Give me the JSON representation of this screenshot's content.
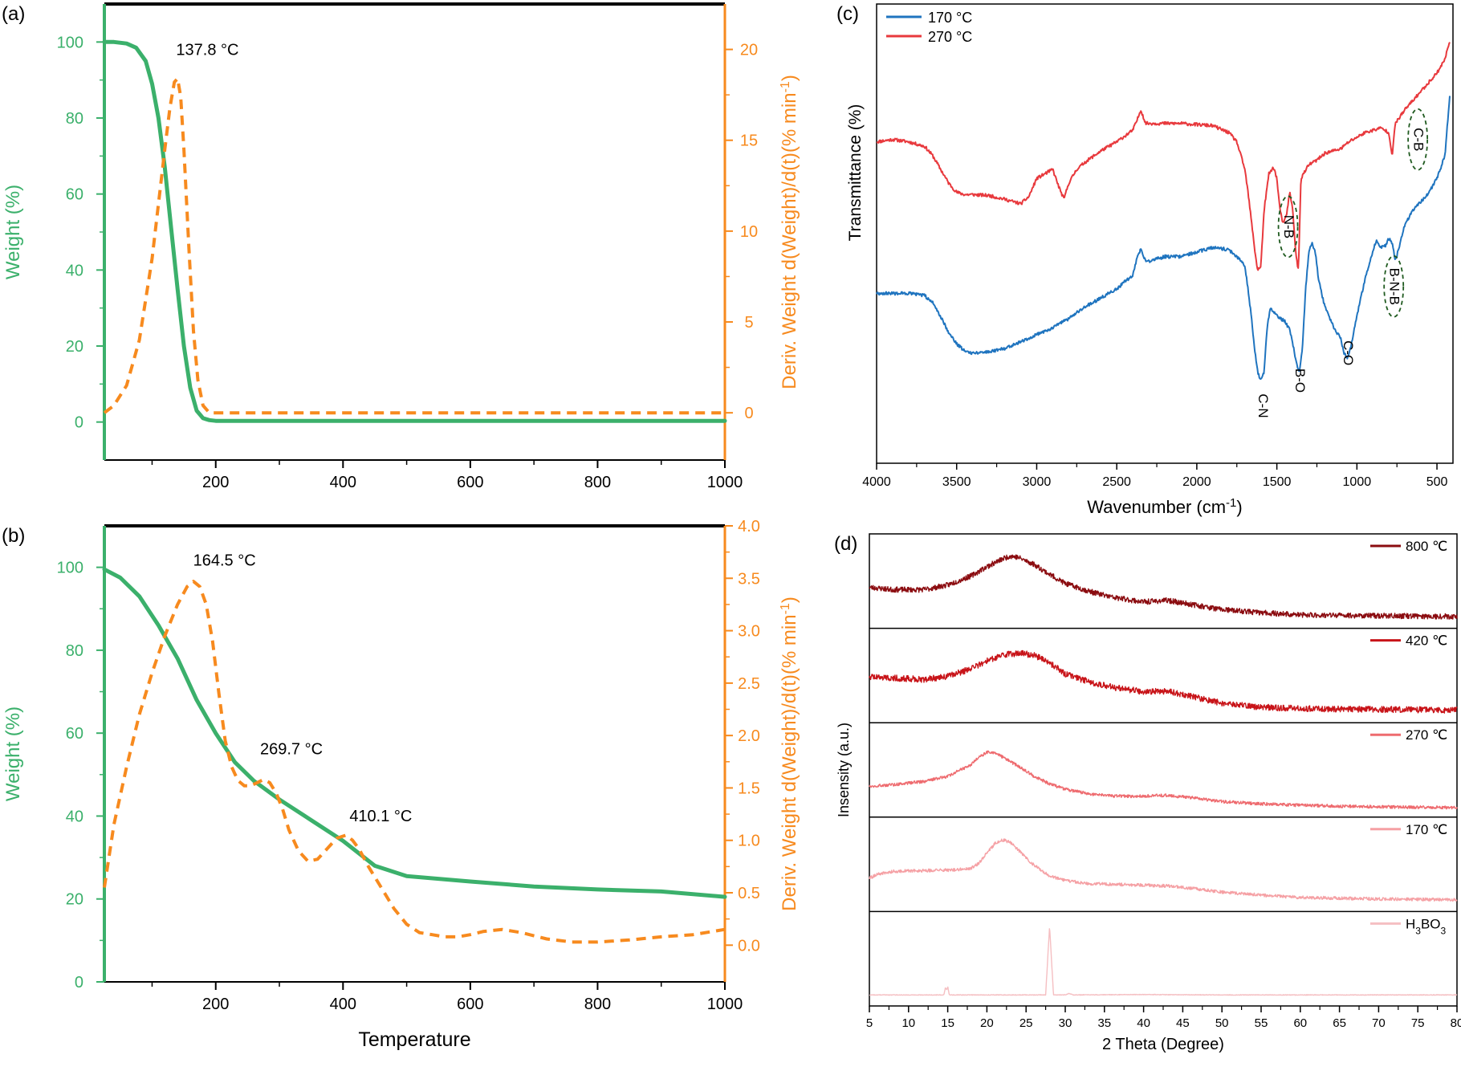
{
  "chart_data": [
    {
      "id": "a",
      "type": "line",
      "panel_label": "(a)",
      "xlabel": "",
      "ylabel": "Weight (%)",
      "ylabel2": "Deriv. Weight d(Weight)/d(t)(% min",
      "ylabel2_sup": "-1",
      "ylabel2_close": ")",
      "xlim": [
        25,
        1000
      ],
      "ylim": [
        -10,
        110
      ],
      "y2lim": [
        -2.6,
        22.5
      ],
      "xticks": [
        200,
        400,
        600,
        800,
        1000
      ],
      "xminor": [
        100,
        300,
        500,
        700,
        900
      ],
      "yticks": [
        0,
        20,
        40,
        60,
        80,
        100
      ],
      "yminor": [
        10,
        30,
        50,
        70,
        90
      ],
      "y2ticks": [
        0,
        5,
        10,
        15,
        20
      ],
      "y2minor": [
        2.5,
        7.5,
        12.5,
        17.5
      ],
      "colors": {
        "weight": "#3bb06b",
        "deriv": "#f78a1e"
      },
      "annotations": [
        {
          "text": "137.8 °C",
          "x": 137.8,
          "y2": 19.7
        }
      ],
      "series": [
        {
          "name": "Weight",
          "axis": "left",
          "style": "solid",
          "x": [
            25,
            40,
            60,
            75,
            90,
            100,
            110,
            120,
            130,
            140,
            150,
            160,
            170,
            180,
            190,
            200,
            300,
            500,
            700,
            1000
          ],
          "y": [
            100,
            100,
            99.6,
            98.5,
            95,
            89,
            80,
            67,
            51,
            35,
            20,
            9,
            3,
            1,
            0.5,
            0.3,
            0.3,
            0.3,
            0.3,
            0.3
          ]
        },
        {
          "name": "Deriv. Weight",
          "axis": "right",
          "style": "dashed",
          "x": [
            25,
            40,
            60,
            80,
            100,
            110,
            120,
            128,
            135,
            140,
            145,
            150,
            158,
            165,
            172,
            180,
            190,
            200,
            300,
            500,
            700,
            1000
          ],
          "y": [
            0,
            0.4,
            1.5,
            4,
            8.5,
            11.5,
            14.5,
            16.8,
            18.2,
            18.4,
            17.4,
            14.5,
            9,
            4.5,
            1.8,
            0.4,
            0,
            0,
            0,
            0,
            0,
            0
          ]
        }
      ]
    },
    {
      "id": "b",
      "type": "line",
      "panel_label": "(b)",
      "xlabel": "Temperature",
      "ylabel": "Weight (%)",
      "ylabel2": "Deriv. Weight d(Weight)/d(t)(% min",
      "ylabel2_sup": "-1",
      "ylabel2_close": ")",
      "xlim": [
        25,
        1000
      ],
      "ylim": [
        0,
        110
      ],
      "y2lim": [
        -0.35,
        4.0
      ],
      "xticks": [
        200,
        400,
        600,
        800,
        1000
      ],
      "xminor": [
        100,
        300,
        500,
        700,
        900
      ],
      "yticks": [
        0,
        20,
        40,
        60,
        80,
        100
      ],
      "yminor": [
        10,
        30,
        50,
        70,
        90
      ],
      "y2ticks": [
        0.0,
        0.5,
        1.0,
        1.5,
        2.0,
        2.5,
        3.0,
        3.5,
        4.0
      ],
      "y2minor": [
        0.25,
        0.75,
        1.25,
        1.75,
        2.25,
        2.75,
        3.25,
        3.75
      ],
      "colors": {
        "weight": "#3bb06b",
        "deriv": "#f78a1e"
      },
      "annotations": [
        {
          "text": "164.5 °C",
          "x": 164.5,
          "y2": 3.62
        },
        {
          "text": "269.7 °C",
          "x": 269.7,
          "y2": 1.82
        },
        {
          "text": "410.1 °C",
          "x": 410.1,
          "y2": 1.18
        }
      ],
      "series": [
        {
          "name": "Weight",
          "axis": "left",
          "style": "solid",
          "x": [
            25,
            50,
            80,
            110,
            140,
            170,
            200,
            230,
            260,
            300,
            350,
            400,
            450,
            500,
            600,
            700,
            800,
            900,
            1000
          ],
          "y": [
            99.5,
            97.5,
            93,
            86,
            78,
            68,
            60,
            53,
            48.5,
            44,
            39,
            34,
            28,
            25.5,
            24.2,
            23,
            22.3,
            21.8,
            20.5
          ]
        },
        {
          "name": "Deriv. Weight",
          "axis": "right",
          "style": "dashed",
          "x": [
            25,
            40,
            60,
            80,
            100,
            120,
            140,
            155,
            165,
            175,
            185,
            195,
            205,
            215,
            225,
            235,
            245,
            255,
            265,
            275,
            285,
            295,
            305,
            315,
            330,
            345,
            360,
            375,
            390,
            405,
            415,
            425,
            440,
            460,
            480,
            500,
            520,
            540,
            560,
            580,
            600,
            620,
            650,
            680,
            720,
            760,
            800,
            850,
            900,
            950,
            1000
          ],
          "y": [
            0.55,
            1.15,
            1.7,
            2.2,
            2.6,
            2.95,
            3.25,
            3.42,
            3.47,
            3.42,
            3.25,
            2.9,
            2.4,
            1.95,
            1.7,
            1.57,
            1.52,
            1.52,
            1.55,
            1.58,
            1.55,
            1.45,
            1.3,
            1.1,
            0.9,
            0.8,
            0.82,
            0.92,
            1.02,
            1.05,
            1.0,
            0.92,
            0.75,
            0.55,
            0.35,
            0.2,
            0.12,
            0.1,
            0.08,
            0.08,
            0.1,
            0.13,
            0.15,
            0.12,
            0.06,
            0.03,
            0.03,
            0.05,
            0.08,
            0.1,
            0.15
          ]
        }
      ]
    },
    {
      "id": "c",
      "type": "line",
      "panel_label": "(c)",
      "xlabel": "Wavenumber (cm",
      "xlabel_sup": "-1",
      "xlabel_close": ")",
      "ylabel": "Transmittance (%)",
      "xlim": [
        4000,
        400
      ],
      "ylim": [
        0,
        100
      ],
      "xticks": [
        4000,
        3500,
        3000,
        2500,
        2000,
        1500,
        1000,
        500
      ],
      "xminor": [
        3750,
        3250,
        2750,
        2250,
        1750,
        1250,
        750
      ],
      "legend": [
        {
          "label": "170 °C",
          "color": "#1f74bf"
        },
        {
          "label": "270 °C",
          "color": "#e8393d"
        }
      ],
      "band_labels": [
        {
          "text": "C-N",
          "x": 1590,
          "y": 12.5,
          "rotate": 90
        },
        {
          "text": "B-O",
          "x": 1360,
          "y": 18,
          "rotate": 90
        },
        {
          "text": "C-O",
          "x": 1060,
          "y": 24,
          "rotate": 90
        },
        {
          "text": "N-B",
          "x": 1430,
          "y": 51.5,
          "rotate": 90,
          "ellipse": true
        },
        {
          "text": "B-N-B",
          "x": 770,
          "y": 38.5,
          "rotate": 90,
          "ellipse": true
        },
        {
          "text": "C-B",
          "x": 620,
          "y": 70.5,
          "rotate": 90,
          "ellipse": true
        }
      ],
      "series": [
        {
          "name": "270 °C",
          "color": "#e8393d",
          "x": [
            4000,
            3900,
            3800,
            3700,
            3650,
            3600,
            3550,
            3500,
            3450,
            3400,
            3300,
            3200,
            3100,
            3050,
            3000,
            2950,
            2900,
            2860,
            2830,
            2800,
            2750,
            2700,
            2600,
            2500,
            2400,
            2370,
            2350,
            2320,
            2300,
            2100,
            1900,
            1800,
            1750,
            1700,
            1680,
            1660,
            1640,
            1620,
            1600,
            1580,
            1550,
            1520,
            1500,
            1480,
            1460,
            1440,
            1420,
            1400,
            1380,
            1365,
            1350,
            1300,
            1250,
            1200,
            1150,
            1100,
            1050,
            1000,
            950,
            900,
            850,
            800,
            780,
            760,
            700,
            650,
            600,
            550,
            500,
            450,
            420
          ],
          "y": [
            70,
            70.5,
            70,
            69,
            67,
            64,
            61,
            59,
            58.5,
            58.5,
            58.3,
            57.5,
            56.5,
            58,
            62,
            63,
            64,
            60,
            57.5,
            61,
            64,
            65.5,
            68,
            70,
            72.5,
            75,
            77,
            74,
            74,
            74,
            73.5,
            72,
            70,
            64,
            59,
            53,
            47,
            42,
            43,
            55,
            63,
            64.5,
            62,
            55,
            52,
            54,
            59,
            55,
            45,
            42,
            62,
            65,
            66,
            67.5,
            68,
            68.5,
            70,
            71,
            72,
            72.5,
            73,
            72,
            67,
            74,
            77,
            79,
            81,
            83,
            85,
            88,
            92
          ]
        },
        {
          "name": "170 °C",
          "color": "#1f74bf",
          "x": [
            4000,
            3900,
            3800,
            3700,
            3650,
            3600,
            3550,
            3500,
            3450,
            3400,
            3300,
            3200,
            3100,
            3000,
            2900,
            2800,
            2700,
            2600,
            2500,
            2400,
            2370,
            2350,
            2320,
            2300,
            2200,
            2100,
            2000,
            1900,
            1800,
            1750,
            1700,
            1680,
            1660,
            1640,
            1620,
            1600,
            1580,
            1560,
            1540,
            1520,
            1500,
            1480,
            1450,
            1420,
            1400,
            1380,
            1360,
            1340,
            1320,
            1300,
            1280,
            1260,
            1240,
            1200,
            1150,
            1100,
            1080,
            1060,
            1040,
            1000,
            950,
            900,
            880,
            850,
            820,
            800,
            780,
            760,
            700,
            650,
            600,
            550,
            500,
            450,
            420
          ],
          "y": [
            37,
            37,
            37,
            36.5,
            35,
            32,
            28.5,
            26,
            24.5,
            24,
            24.3,
            25,
            26.5,
            28,
            29.5,
            31.5,
            34,
            36,
            38,
            41,
            45,
            46.5,
            44,
            44,
            45,
            45,
            46,
            47,
            46.5,
            45,
            43,
            38,
            32,
            25,
            20,
            18,
            20,
            30,
            34,
            33,
            32,
            31.5,
            31,
            29,
            26,
            22,
            20,
            25,
            38,
            46,
            48,
            46,
            40,
            34,
            30,
            27,
            24,
            23,
            25,
            32,
            40,
            46,
            48.5,
            47,
            47.5,
            49,
            48,
            44,
            52,
            55,
            57,
            59,
            62,
            67,
            80
          ]
        }
      ]
    },
    {
      "id": "d",
      "type": "line",
      "panel_label": "(d)",
      "xlabel": "2 Theta (Degree)",
      "ylabel": "Insensity (a.u.)",
      "xlim": [
        5,
        80
      ],
      "xticks": [
        5,
        10,
        15,
        20,
        25,
        30,
        35,
        40,
        45,
        50,
        55,
        60,
        65,
        70,
        75,
        80
      ],
      "xminor": [
        7.5,
        12.5,
        17.5,
        22.5,
        27.5,
        32.5,
        37.5,
        42.5,
        47.5,
        52.5,
        57.5,
        62.5,
        67.5,
        72.5,
        77.5
      ],
      "series": [
        {
          "name": "800 ℃",
          "legend": "800 ℃",
          "color": "#8b0c10",
          "noise": 0.035,
          "x": [
            5,
            8,
            12,
            15,
            18,
            20,
            22,
            23,
            24,
            26,
            28,
            30,
            33,
            36,
            40,
            43,
            46,
            50,
            55,
            60,
            70,
            80
          ],
          "y": [
            0.45,
            0.42,
            0.42,
            0.48,
            0.6,
            0.72,
            0.82,
            0.86,
            0.84,
            0.75,
            0.62,
            0.5,
            0.4,
            0.32,
            0.26,
            0.28,
            0.23,
            0.16,
            0.12,
            0.09,
            0.08,
            0.07
          ]
        },
        {
          "name": "420 ℃",
          "legend": "420 ℃",
          "color": "#c81419",
          "noise": 0.04,
          "x": [
            5,
            8,
            12,
            15,
            18,
            20,
            22,
            24,
            26,
            28,
            30,
            33,
            36,
            40,
            43,
            46,
            50,
            55,
            60,
            70,
            80
          ],
          "y": [
            0.52,
            0.5,
            0.48,
            0.52,
            0.62,
            0.72,
            0.8,
            0.82,
            0.8,
            0.7,
            0.55,
            0.45,
            0.38,
            0.32,
            0.33,
            0.26,
            0.17,
            0.12,
            0.1,
            0.09,
            0.08
          ]
        },
        {
          "name": "270 ℃",
          "legend": "270 ℃",
          "color": "#ee6b6f",
          "noise": 0.02,
          "x": [
            5,
            8,
            12,
            15,
            18,
            19,
            20,
            21,
            22,
            24,
            26,
            28,
            30,
            33,
            36,
            40,
            43,
            46,
            50,
            55,
            60,
            70,
            80
          ],
          "y": [
            0.32,
            0.34,
            0.38,
            0.45,
            0.6,
            0.7,
            0.76,
            0.75,
            0.7,
            0.58,
            0.45,
            0.35,
            0.28,
            0.22,
            0.19,
            0.19,
            0.2,
            0.17,
            0.12,
            0.09,
            0.07,
            0.05,
            0.04
          ]
        },
        {
          "name": "170 ℃",
          "legend": "170 ℃",
          "color": "#f5a0a4",
          "noise": 0.02,
          "x": [
            5,
            6,
            8,
            12,
            16,
            18,
            19,
            20,
            21,
            22,
            23,
            24,
            26,
            28,
            30,
            33,
            36,
            40,
            43,
            46,
            50,
            55,
            60,
            70,
            80
          ],
          "y": [
            0.35,
            0.4,
            0.44,
            0.45,
            0.46,
            0.48,
            0.55,
            0.68,
            0.8,
            0.85,
            0.82,
            0.72,
            0.52,
            0.38,
            0.32,
            0.28,
            0.27,
            0.26,
            0.25,
            0.22,
            0.17,
            0.13,
            0.1,
            0.08,
            0.07
          ]
        },
        {
          "name": "H3BO3",
          "legend": "H",
          "legend_sub": "3",
          "legend_mid": "BO",
          "legend_sub2": "3",
          "color": "#f5bfc2",
          "noise": 0.004,
          "x": [
            5,
            14.5,
            14.7,
            14.9,
            15.0,
            15.2,
            15.4,
            27.5,
            27.8,
            28.0,
            28.2,
            28.5,
            30,
            30.5,
            31,
            40,
            50,
            80
          ],
          "y": [
            0.06,
            0.06,
            0.15,
            0.13,
            0.17,
            0.06,
            0.06,
            0.06,
            0.6,
            0.95,
            0.6,
            0.06,
            0.06,
            0.08,
            0.06,
            0.065,
            0.06,
            0.06
          ]
        }
      ]
    }
  ]
}
